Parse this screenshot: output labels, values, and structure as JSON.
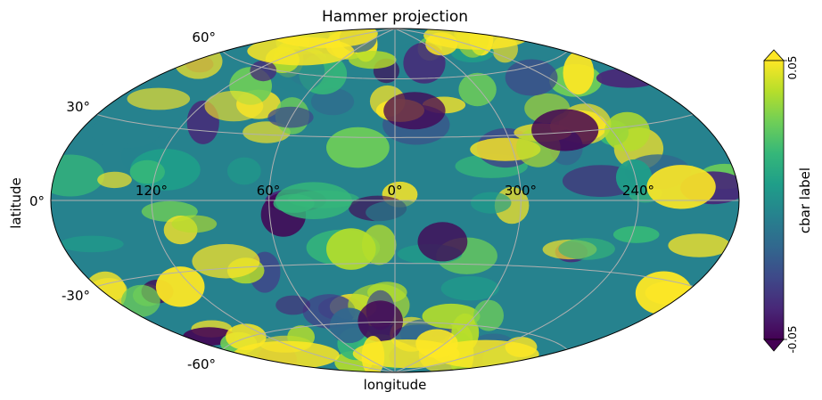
{
  "chart_data": {
    "type": "heatmap",
    "projection": "hammer",
    "title": "Hammer projection",
    "xlabel": "longitude",
    "ylabel": "latitude",
    "longitude_tick_labels": [
      "120°",
      "60°",
      "0°",
      "300°",
      "240°"
    ],
    "latitude_tick_labels": [
      "60°",
      "30°",
      "0°",
      "-30°",
      "-60°"
    ],
    "gridlines": true,
    "colormap": "viridis",
    "colorbar": {
      "label": "cbar label",
      "min": -0.05,
      "max": 0.05,
      "tick_labels": [
        "0.05",
        "-0.05"
      ],
      "extend": "both",
      "placement": "right"
    },
    "colors": {
      "viridis": [
        "#440154",
        "#482878",
        "#3e4989",
        "#31688e",
        "#26828e",
        "#1f9e89",
        "#35b779",
        "#6ece58",
        "#b5de2b",
        "#fde725"
      ],
      "grid": "#b0b0b0",
      "outline": "#000000"
    }
  }
}
